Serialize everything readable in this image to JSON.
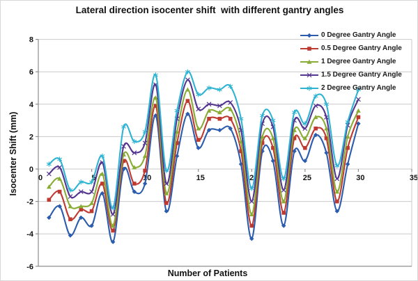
{
  "chart_data": {
    "type": "line",
    "title": "Lateral direction isocenter shift  with different gantry angles",
    "xlabel": "Number of Patients",
    "ylabel": "Isocenter Shift (mm)",
    "xlim": [
      0,
      35
    ],
    "ylim": [
      -6,
      8
    ],
    "x_ticks": [
      0,
      5,
      10,
      15,
      20,
      25,
      30,
      35
    ],
    "y_ticks": [
      -6,
      -4,
      -2,
      0,
      2,
      4,
      6,
      8
    ],
    "grid": "horizontal",
    "legend_position": "top-right",
    "line_style": "smooth",
    "x": [
      1,
      2,
      3,
      4,
      5,
      6,
      7,
      8,
      9,
      10,
      11,
      12,
      13,
      14,
      15,
      16,
      17,
      18,
      19,
      20,
      21,
      22,
      23,
      24,
      25,
      26,
      27,
      28,
      29,
      30
    ],
    "series": [
      {
        "name": "0 Degree Gantry Angle",
        "color": "#2b5cad",
        "marker": "diamond",
        "values": [
          -3.0,
          -2.3,
          -4.1,
          -3.0,
          -3.5,
          -1.5,
          -4.5,
          0.0,
          -1.4,
          -0.9,
          3.3,
          -2.6,
          0.8,
          3.4,
          1.3,
          2.4,
          2.4,
          2.5,
          0.3,
          -4.3,
          1.1,
          0.5,
          -3.5,
          1.1,
          0.5,
          2.1,
          1.0,
          -2.6,
          0.3,
          2.8
        ]
      },
      {
        "name": "0.5 Degree Gantry Angle",
        "color": "#be3a31",
        "marker": "square",
        "values": [
          -1.9,
          -1.4,
          -3.1,
          -2.5,
          -2.6,
          -0.9,
          -3.8,
          0.5,
          -0.9,
          -0.1,
          3.9,
          -2.1,
          1.6,
          4.2,
          1.8,
          3.1,
          3.1,
          3.1,
          1.1,
          -3.5,
          1.6,
          1.3,
          -2.7,
          1.9,
          1.3,
          2.5,
          1.9,
          -2.0,
          1.3,
          3.2
        ]
      },
      {
        "name": "1 Degree Gantry Angle",
        "color": "#89ac35",
        "marker": "triangle",
        "values": [
          -1.1,
          -0.6,
          -2.3,
          -2.3,
          -2.1,
          -0.3,
          -3.5,
          0.9,
          0.1,
          0.8,
          4.4,
          -1.5,
          2.3,
          4.9,
          2.5,
          3.6,
          3.5,
          3.7,
          1.7,
          -2.8,
          2.0,
          1.9,
          -2.0,
          2.4,
          1.9,
          3.2,
          2.5,
          -1.4,
          2.0,
          3.6
        ]
      },
      {
        "name": "1.5 Degree Gantry Angle",
        "color": "#54358f",
        "marker": "x",
        "values": [
          -0.3,
          0.1,
          -1.7,
          -1.4,
          -1.4,
          0.4,
          -2.8,
          1.4,
          1.0,
          1.6,
          5.2,
          -0.9,
          3.1,
          5.5,
          3.7,
          4.0,
          3.9,
          4.1,
          2.4,
          -2.0,
          2.8,
          2.6,
          -1.3,
          3.0,
          2.5,
          3.9,
          3.2,
          -0.6,
          2.7,
          4.3
        ]
      },
      {
        "name": "2 Degree Gantry Angle",
        "color": "#2eb3d3",
        "marker": "star",
        "values": [
          0.3,
          0.6,
          -1.3,
          -0.8,
          -0.8,
          0.8,
          -2.4,
          2.6,
          1.7,
          2.3,
          5.8,
          -0.1,
          3.6,
          6.0,
          4.6,
          5.0,
          4.9,
          5.1,
          3.1,
          -1.2,
          3.3,
          3.0,
          -0.6,
          3.5,
          2.8,
          4.5,
          4.0,
          0.2,
          2.9,
          4.9
        ]
      }
    ],
    "axis_colors": {
      "grid": "#c9c9c9",
      "axis": "#8c8c8c"
    }
  }
}
